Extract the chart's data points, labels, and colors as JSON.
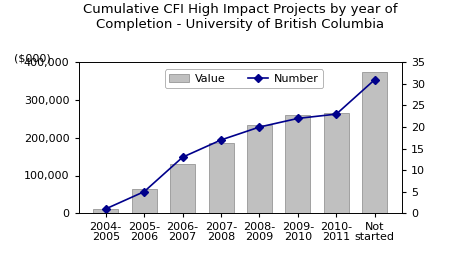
{
  "categories": [
    "2004-\n2005",
    "2005-\n2006",
    "2006-\n2007",
    "2007-\n2008",
    "2008-\n2009",
    "2009-\n2010",
    "2010-\n2011",
    "Not\nstarted"
  ],
  "bar_values": [
    10000,
    65000,
    130000,
    185000,
    235000,
    260000,
    265000,
    375000
  ],
  "line_values": [
    1,
    5,
    13,
    17,
    20,
    22,
    23,
    31
  ],
  "bar_color": "#c0c0c0",
  "bar_edgecolor": "#888888",
  "line_color": "#00008b",
  "line_marker": "D",
  "title": "Cumulative CFI High Impact Projects by year of\nCompletion - University of British Columbia",
  "ylabel_left": "($000)",
  "ylim_left": [
    0,
    400000
  ],
  "yticks_left": [
    0,
    100000,
    200000,
    300000,
    400000
  ],
  "ytick_labels_left": [
    "0",
    "100,000",
    "200,000",
    "300,000",
    "400,000"
  ],
  "ylim_right": [
    0,
    35
  ],
  "yticks_right": [
    0,
    5,
    10,
    15,
    20,
    25,
    30,
    35
  ],
  "legend_labels": [
    "Value",
    "Number"
  ],
  "background_color": "#ffffff",
  "title_fontsize": 9.5,
  "axis_label_fontsize": 8,
  "tick_fontsize": 8
}
